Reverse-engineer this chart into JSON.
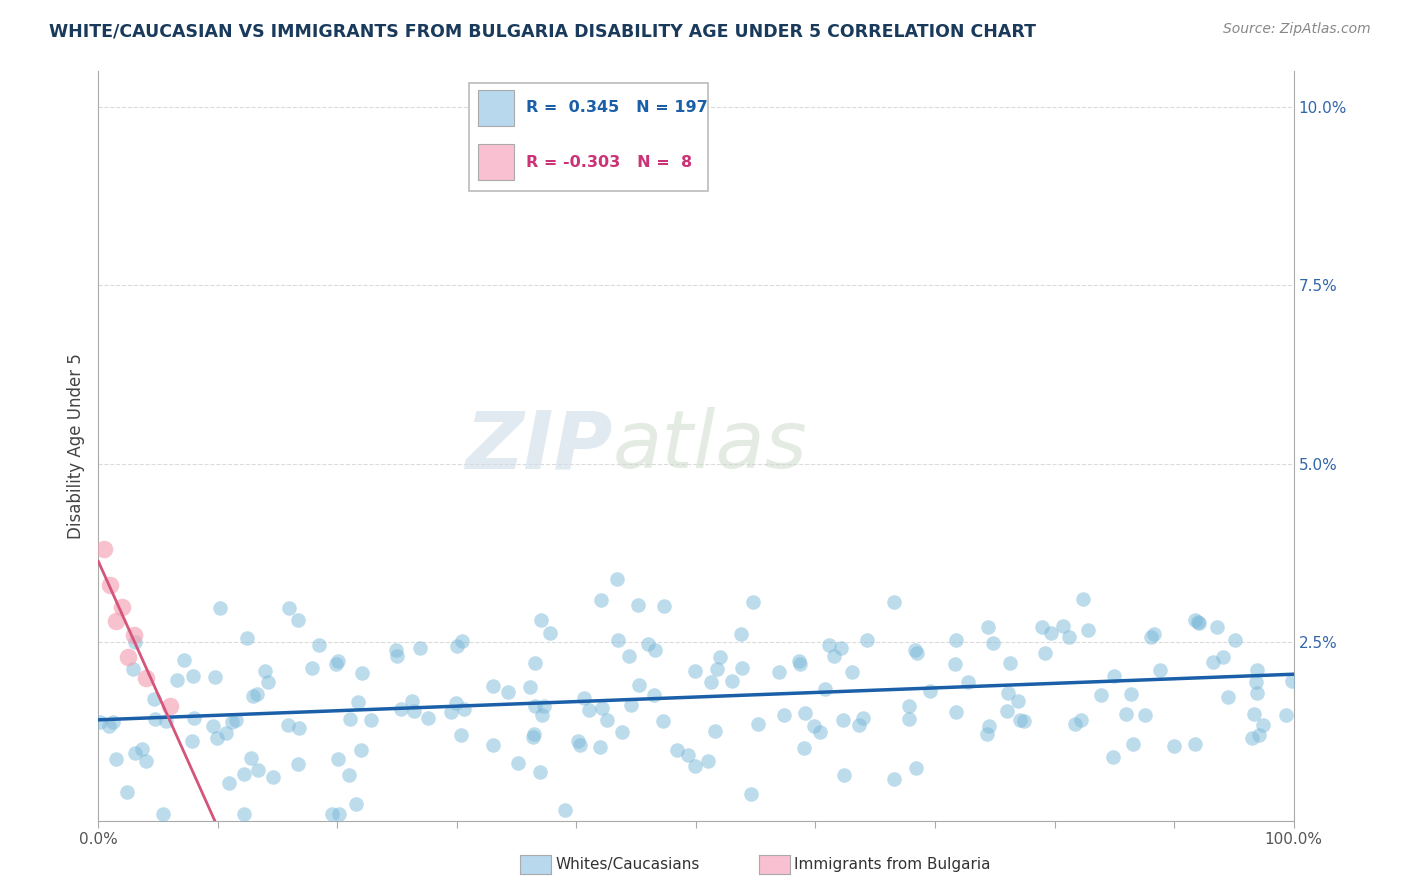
{
  "title": "WHITE/CAUCASIAN VS IMMIGRANTS FROM BULGARIA DISABILITY AGE UNDER 5 CORRELATION CHART",
  "source_text": "Source: ZipAtlas.com",
  "ylabel": "Disability Age Under 5",
  "watermark_zip": "ZIP",
  "watermark_atlas": "atlas",
  "blue_R": 0.345,
  "blue_N": 197,
  "pink_R": -0.303,
  "pink_N": 8,
  "xlim": [
    0,
    1.0
  ],
  "ylim": [
    0,
    0.105
  ],
  "blue_color": "#7ab8d9",
  "pink_color": "#f4a0b5",
  "blue_line_color": "#1a5fa8",
  "pink_line_color": "#d4547a",
  "legend_box_blue": "#b8d8ee",
  "legend_box_pink": "#f8c0d0",
  "background_color": "#ffffff",
  "grid_color": "#cccccc",
  "title_color": "#1a3a5c"
}
